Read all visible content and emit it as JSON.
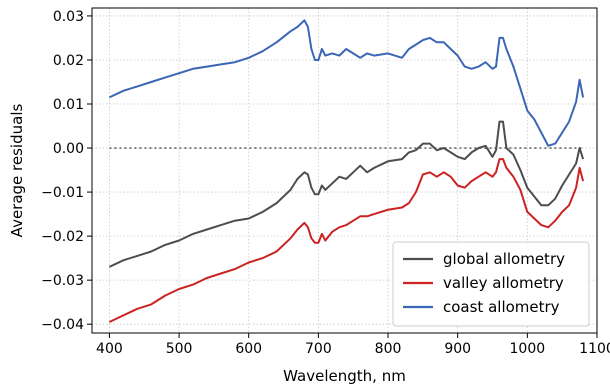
{
  "chart_data": {
    "type": "line",
    "title": "",
    "xlabel": "Wavelength, nm",
    "ylabel": "Average residuals",
    "xlim": [
      375,
      1100
    ],
    "ylim": [
      -0.042,
      0.0318
    ],
    "xticks": [
      400,
      500,
      600,
      700,
      800,
      900,
      1000,
      1100
    ],
    "xtick_labels": [
      "400",
      "500",
      "600",
      "700",
      "800",
      "900",
      "1000",
      "1100"
    ],
    "yticks": [
      -0.04,
      -0.03,
      -0.02,
      -0.01,
      0.0,
      0.01,
      0.02,
      0.03
    ],
    "ytick_labels": [
      "−0.04",
      "−0.03",
      "−0.02",
      "−0.01",
      "0.00",
      "0.01",
      "0.02",
      "0.03"
    ],
    "grid": true,
    "legend_position": "lower-right",
    "reference_line": {
      "y": 0.0,
      "style": "dotted",
      "color": "#666666"
    },
    "series": [
      {
        "name": "global allometry",
        "color": "#4d4d4d",
        "points": [
          [
            400,
            -0.027
          ],
          [
            420,
            -0.0255
          ],
          [
            440,
            -0.0245
          ],
          [
            460,
            -0.0235
          ],
          [
            480,
            -0.022
          ],
          [
            500,
            -0.021
          ],
          [
            520,
            -0.0195
          ],
          [
            540,
            -0.0185
          ],
          [
            560,
            -0.0175
          ],
          [
            580,
            -0.0165
          ],
          [
            600,
            -0.016
          ],
          [
            620,
            -0.0145
          ],
          [
            640,
            -0.0125
          ],
          [
            660,
            -0.0095
          ],
          [
            670,
            -0.007
          ],
          [
            680,
            -0.0055
          ],
          [
            685,
            -0.006
          ],
          [
            690,
            -0.009
          ],
          [
            695,
            -0.0105
          ],
          [
            700,
            -0.0105
          ],
          [
            705,
            -0.0085
          ],
          [
            710,
            -0.0095
          ],
          [
            720,
            -0.008
          ],
          [
            730,
            -0.0065
          ],
          [
            740,
            -0.007
          ],
          [
            750,
            -0.0055
          ],
          [
            760,
            -0.004
          ],
          [
            770,
            -0.0055
          ],
          [
            780,
            -0.0045
          ],
          [
            800,
            -0.003
          ],
          [
            820,
            -0.0025
          ],
          [
            830,
            -0.001
          ],
          [
            840,
            -0.0005
          ],
          [
            850,
            0.001
          ],
          [
            860,
            0.001
          ],
          [
            870,
            -0.0005
          ],
          [
            880,
            0.0
          ],
          [
            890,
            -0.001
          ],
          [
            900,
            -0.002
          ],
          [
            910,
            -0.0025
          ],
          [
            920,
            -0.001
          ],
          [
            930,
            0.0
          ],
          [
            940,
            0.0005
          ],
          [
            950,
            -0.002
          ],
          [
            955,
            -0.0005
          ],
          [
            960,
            0.006
          ],
          [
            965,
            0.006
          ],
          [
            970,
            0.0
          ],
          [
            980,
            -0.0015
          ],
          [
            990,
            -0.005
          ],
          [
            1000,
            -0.009
          ],
          [
            1010,
            -0.011
          ],
          [
            1020,
            -0.013
          ],
          [
            1030,
            -0.013
          ],
          [
            1040,
            -0.0115
          ],
          [
            1050,
            -0.0085
          ],
          [
            1060,
            -0.006
          ],
          [
            1070,
            -0.0035
          ],
          [
            1075,
            0.0
          ],
          [
            1080,
            -0.0025
          ]
        ]
      },
      {
        "name": "valley allometry",
        "color": "#cc2222",
        "points": [
          [
            400,
            -0.0395
          ],
          [
            420,
            -0.038
          ],
          [
            440,
            -0.0365
          ],
          [
            460,
            -0.0355
          ],
          [
            480,
            -0.0335
          ],
          [
            500,
            -0.032
          ],
          [
            520,
            -0.031
          ],
          [
            540,
            -0.0295
          ],
          [
            560,
            -0.0285
          ],
          [
            580,
            -0.0275
          ],
          [
            600,
            -0.026
          ],
          [
            620,
            -0.025
          ],
          [
            640,
            -0.0235
          ],
          [
            660,
            -0.0205
          ],
          [
            670,
            -0.0185
          ],
          [
            680,
            -0.017
          ],
          [
            685,
            -0.018
          ],
          [
            690,
            -0.0205
          ],
          [
            695,
            -0.0215
          ],
          [
            700,
            -0.0215
          ],
          [
            705,
            -0.0195
          ],
          [
            710,
            -0.021
          ],
          [
            720,
            -0.019
          ],
          [
            730,
            -0.018
          ],
          [
            740,
            -0.0175
          ],
          [
            750,
            -0.0165
          ],
          [
            760,
            -0.0155
          ],
          [
            770,
            -0.0155
          ],
          [
            780,
            -0.015
          ],
          [
            800,
            -0.014
          ],
          [
            820,
            -0.0135
          ],
          [
            830,
            -0.0125
          ],
          [
            840,
            -0.01
          ],
          [
            850,
            -0.006
          ],
          [
            860,
            -0.0055
          ],
          [
            870,
            -0.0065
          ],
          [
            880,
            -0.0055
          ],
          [
            890,
            -0.0065
          ],
          [
            900,
            -0.0085
          ],
          [
            910,
            -0.009
          ],
          [
            920,
            -0.0075
          ],
          [
            930,
            -0.0065
          ],
          [
            940,
            -0.0055
          ],
          [
            950,
            -0.0065
          ],
          [
            955,
            -0.0055
          ],
          [
            960,
            -0.0025
          ],
          [
            965,
            -0.0025
          ],
          [
            970,
            -0.0045
          ],
          [
            980,
            -0.0065
          ],
          [
            990,
            -0.0095
          ],
          [
            1000,
            -0.0145
          ],
          [
            1010,
            -0.016
          ],
          [
            1020,
            -0.0175
          ],
          [
            1030,
            -0.018
          ],
          [
            1040,
            -0.0165
          ],
          [
            1050,
            -0.0145
          ],
          [
            1060,
            -0.013
          ],
          [
            1070,
            -0.009
          ],
          [
            1075,
            -0.0045
          ],
          [
            1080,
            -0.0075
          ]
        ]
      },
      {
        "name": "coast allometry",
        "color": "#3b66b5",
        "points": [
          [
            400,
            0.0115
          ],
          [
            420,
            0.013
          ],
          [
            440,
            0.014
          ],
          [
            460,
            0.015
          ],
          [
            480,
            0.016
          ],
          [
            500,
            0.017
          ],
          [
            520,
            0.018
          ],
          [
            540,
            0.0185
          ],
          [
            560,
            0.019
          ],
          [
            580,
            0.0195
          ],
          [
            600,
            0.0205
          ],
          [
            620,
            0.022
          ],
          [
            640,
            0.024
          ],
          [
            660,
            0.0265
          ],
          [
            670,
            0.0275
          ],
          [
            680,
            0.029
          ],
          [
            685,
            0.0275
          ],
          [
            690,
            0.0225
          ],
          [
            695,
            0.02
          ],
          [
            700,
            0.02
          ],
          [
            705,
            0.0225
          ],
          [
            710,
            0.021
          ],
          [
            720,
            0.0215
          ],
          [
            730,
            0.021
          ],
          [
            740,
            0.0225
          ],
          [
            750,
            0.0215
          ],
          [
            760,
            0.0205
          ],
          [
            770,
            0.0215
          ],
          [
            780,
            0.021
          ],
          [
            800,
            0.0215
          ],
          [
            820,
            0.0205
          ],
          [
            830,
            0.0225
          ],
          [
            840,
            0.0235
          ],
          [
            850,
            0.0245
          ],
          [
            860,
            0.025
          ],
          [
            870,
            0.024
          ],
          [
            880,
            0.024
          ],
          [
            890,
            0.0225
          ],
          [
            900,
            0.021
          ],
          [
            910,
            0.0185
          ],
          [
            920,
            0.018
          ],
          [
            930,
            0.0185
          ],
          [
            940,
            0.0195
          ],
          [
            950,
            0.018
          ],
          [
            955,
            0.0185
          ],
          [
            960,
            0.025
          ],
          [
            965,
            0.025
          ],
          [
            970,
            0.0225
          ],
          [
            980,
            0.0185
          ],
          [
            990,
            0.0135
          ],
          [
            1000,
            0.0085
          ],
          [
            1010,
            0.0065
          ],
          [
            1020,
            0.0035
          ],
          [
            1030,
            0.0005
          ],
          [
            1040,
            0.001
          ],
          [
            1050,
            0.0035
          ],
          [
            1060,
            0.006
          ],
          [
            1070,
            0.0105
          ],
          [
            1075,
            0.0155
          ],
          [
            1080,
            0.0115
          ]
        ]
      }
    ]
  }
}
